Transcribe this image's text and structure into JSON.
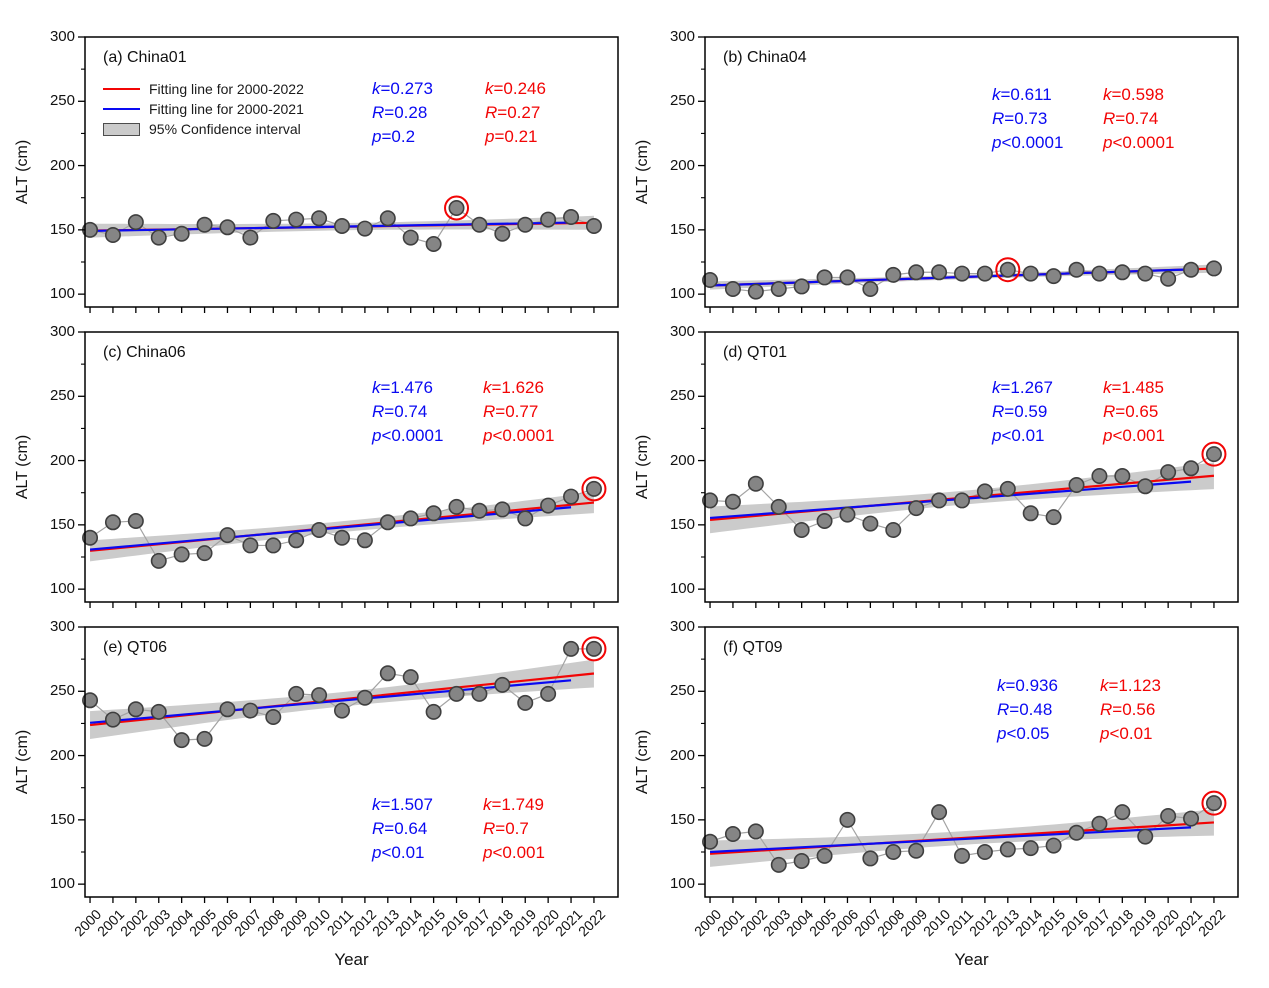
{
  "figure": {
    "y_axis_label": "ALT (cm)",
    "x_axis_label": "Year",
    "y_ticks": [
      100,
      150,
      200,
      250,
      300
    ],
    "y_minor_ticks": [
      125,
      175,
      225,
      275
    ],
    "years": [
      2000,
      2001,
      2002,
      2003,
      2004,
      2005,
      2006,
      2007,
      2008,
      2009,
      2010,
      2011,
      2012,
      2013,
      2014,
      2015,
      2016,
      2017,
      2018,
      2019,
      2020,
      2021,
      2022
    ],
    "colors": {
      "red_fit": "#f20505",
      "blue_fit": "#0a0af2",
      "confidence_band": "#cbcbcb",
      "point_fill": "#858585",
      "point_stroke": "#3f3f3f",
      "connector": "#a3a3a3",
      "axis": "#000000",
      "circle_marker": "#f20505"
    },
    "legend": {
      "items": [
        {
          "swatch": "red-line",
          "label": "Fitting line for 2000-2022"
        },
        {
          "swatch": "blue-line",
          "label": "Fitting line for 2000-2021"
        },
        {
          "swatch": "gray-box",
          "label": "95% Confidence interval"
        }
      ]
    }
  },
  "chart_data": [
    {
      "id": "a",
      "type": "line+scatter",
      "label": "(a) China01",
      "x_range": [
        2000,
        2022
      ],
      "y_range": [
        90,
        300
      ],
      "values": [
        150,
        146,
        156,
        144,
        147,
        154,
        152,
        144,
        157,
        158,
        159,
        153,
        151,
        159,
        144,
        139,
        167,
        154,
        147,
        154,
        158,
        160,
        153
      ],
      "circled_year": 2016,
      "stats": {
        "blue": [
          "k=0.273",
          "R=0.28",
          "p=0.2"
        ],
        "red": [
          "k=0.246",
          "R=0.27",
          "p=0.21"
        ]
      }
    },
    {
      "id": "b",
      "type": "line+scatter",
      "label": "(b) China04",
      "x_range": [
        2000,
        2022
      ],
      "y_range": [
        90,
        300
      ],
      "values": [
        111,
        104,
        102,
        104,
        106,
        113,
        113,
        104,
        115,
        117,
        117,
        116,
        116,
        119,
        116,
        114,
        119,
        116,
        117,
        116,
        112,
        119,
        120
      ],
      "circled_year": 2013,
      "stats": {
        "blue": [
          "k=0.611",
          "R=0.73",
          "p<0.0001"
        ],
        "red": [
          "k=0.598",
          "R=0.74",
          "p<0.0001"
        ]
      }
    },
    {
      "id": "c",
      "type": "line+scatter",
      "label": "(c) China06",
      "x_range": [
        2000,
        2022
      ],
      "y_range": [
        90,
        300
      ],
      "values": [
        140,
        152,
        153,
        122,
        127,
        128,
        142,
        134,
        134,
        138,
        146,
        140,
        138,
        152,
        155,
        159,
        164,
        161,
        162,
        155,
        165,
        172,
        178
      ],
      "circled_year": 2022,
      "stats": {
        "blue": [
          "k=1.476",
          "R=0.74",
          "p<0.0001"
        ],
        "red": [
          "k=1.626",
          "R=0.77",
          "p<0.0001"
        ]
      }
    },
    {
      "id": "d",
      "type": "line+scatter",
      "label": "(d) QT01",
      "x_range": [
        2000,
        2022
      ],
      "y_range": [
        90,
        300
      ],
      "values": [
        169,
        168,
        182,
        164,
        146,
        153,
        158,
        151,
        146,
        163,
        169,
        169,
        176,
        178,
        159,
        156,
        181,
        188,
        188,
        180,
        191,
        194,
        205
      ],
      "circled_year": 2022,
      "stats": {
        "blue": [
          "k=1.267",
          "R=0.59",
          "p<0.01"
        ],
        "red": [
          "k=1.485",
          "R=0.65",
          "p<0.001"
        ]
      }
    },
    {
      "id": "e",
      "type": "line+scatter",
      "label": "(e) QT06",
      "x_range": [
        2000,
        2022
      ],
      "y_range": [
        90,
        300
      ],
      "values": [
        243,
        228,
        236,
        234,
        212,
        213,
        236,
        235,
        230,
        248,
        247,
        235,
        245,
        264,
        261,
        234,
        248,
        248,
        255,
        241,
        248,
        283,
        283
      ],
      "circled_year": 2022,
      "stats": {
        "blue": [
          "k=1.507",
          "R=0.64",
          "p<0.01"
        ],
        "red": [
          "k=1.749",
          "R=0.7",
          "p<0.001"
        ]
      }
    },
    {
      "id": "f",
      "type": "line+scatter",
      "label": "(f) QT09",
      "x_range": [
        2000,
        2022
      ],
      "y_range": [
        90,
        300
      ],
      "values": [
        133,
        139,
        141,
        115,
        118,
        122,
        150,
        120,
        125,
        126,
        156,
        122,
        125,
        127,
        128,
        130,
        140,
        147,
        156,
        137,
        153,
        151,
        163
      ],
      "circled_year": 2022,
      "stats": {
        "blue": [
          "k=0.936",
          "R=0.48",
          "p<0.05"
        ],
        "red": [
          "k=1.123",
          "R=0.56",
          "p<0.01"
        ]
      }
    }
  ]
}
